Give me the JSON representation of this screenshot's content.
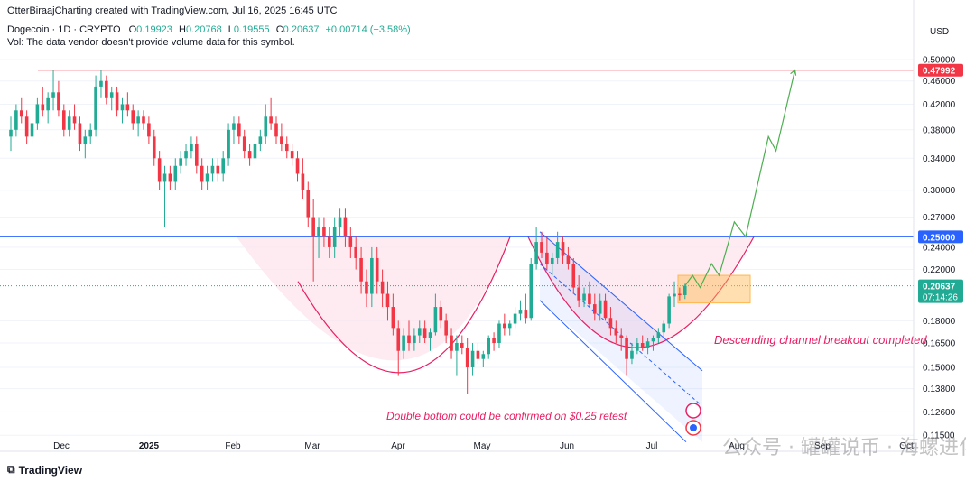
{
  "header": {
    "author_line": "OtterBiraajCharting created with TradingView.com, Jul 16, 2025 16:45 UTC",
    "symbol": "Dogecoin · 1D · CRYPTO",
    "o_label": "O",
    "o_value": "0.19923",
    "h_label": "H",
    "h_value": "0.20768",
    "l_label": "L",
    "l_value": "0.19555",
    "c_label": "C",
    "c_value": "0.20637",
    "change": "+0.00714 (+3.58%)",
    "vol_note": "Vol: The data vendor doesn't provide volume data for this symbol."
  },
  "currency": "USD",
  "branding": "TradingView",
  "watermark": "公众号 · 罐罐说币 · 海螺进化论",
  "colors": {
    "up": "#22ab94",
    "down": "#f23645",
    "resistance": "#f23645",
    "support": "#2962ff",
    "pattern_fill": "#fce4ec",
    "pattern_stroke": "#e91e63",
    "channel": "#2962ff",
    "projection": "#4caf50",
    "box": "#ffb74d"
  },
  "chart_data": {
    "type": "candlestick",
    "title": "Dogecoin · 1D · CRYPTO",
    "x_tick_labels": [
      "Dec",
      "2025",
      "Feb",
      "Mar",
      "Apr",
      "May",
      "Jun",
      "Jul",
      "Aug",
      "Sep",
      "Oct"
    ],
    "y_axis": {
      "scale": "log",
      "ylim": [
        0.108,
        0.52
      ],
      "tick_labels": [
        "0.50000",
        "0.46000",
        "0.42000",
        "0.38000",
        "0.34000",
        "0.30000",
        "0.27000",
        "0.24000",
        "0.22000",
        "0.18000",
        "0.16500",
        "0.15000",
        "0.13800",
        "0.12600",
        "0.11500"
      ]
    },
    "price_tags": [
      {
        "label": "0.47992",
        "value": 0.47992,
        "color": "#f23645"
      },
      {
        "label": "0.25000",
        "value": 0.25,
        "color": "#2962ff"
      },
      {
        "label": "0.20637",
        "sub": "07:14:26",
        "value": 0.20637,
        "color": "#22ab94"
      }
    ],
    "horizontal_levels": [
      {
        "value": 0.47992,
        "color": "#f23645"
      },
      {
        "value": 0.25,
        "color": "#2962ff"
      }
    ],
    "annotations": [
      {
        "text": "Descending channel breakout completed"
      },
      {
        "text": "Double bottom could be confirmed on $0.25 retest"
      }
    ],
    "current_price": 0.20637,
    "candles": [
      [
        0.37,
        0.4,
        0.35,
        0.38
      ],
      [
        0.38,
        0.42,
        0.37,
        0.41
      ],
      [
        0.41,
        0.43,
        0.39,
        0.4
      ],
      [
        0.4,
        0.41,
        0.36,
        0.37
      ],
      [
        0.37,
        0.4,
        0.36,
        0.39
      ],
      [
        0.39,
        0.43,
        0.38,
        0.42
      ],
      [
        0.42,
        0.45,
        0.4,
        0.41
      ],
      [
        0.41,
        0.44,
        0.39,
        0.43
      ],
      [
        0.43,
        0.48,
        0.41,
        0.44
      ],
      [
        0.44,
        0.46,
        0.4,
        0.41
      ],
      [
        0.41,
        0.42,
        0.37,
        0.38
      ],
      [
        0.38,
        0.41,
        0.37,
        0.4
      ],
      [
        0.4,
        0.42,
        0.38,
        0.39
      ],
      [
        0.39,
        0.4,
        0.35,
        0.36
      ],
      [
        0.36,
        0.38,
        0.34,
        0.37
      ],
      [
        0.37,
        0.39,
        0.36,
        0.38
      ],
      [
        0.38,
        0.47,
        0.37,
        0.45
      ],
      [
        0.45,
        0.48,
        0.43,
        0.46
      ],
      [
        0.46,
        0.47,
        0.42,
        0.43
      ],
      [
        0.43,
        0.45,
        0.41,
        0.44
      ],
      [
        0.44,
        0.45,
        0.4,
        0.41
      ],
      [
        0.41,
        0.43,
        0.39,
        0.42
      ],
      [
        0.42,
        0.44,
        0.4,
        0.41
      ],
      [
        0.41,
        0.42,
        0.38,
        0.39
      ],
      [
        0.39,
        0.41,
        0.37,
        0.4
      ],
      [
        0.4,
        0.41,
        0.38,
        0.39
      ],
      [
        0.39,
        0.4,
        0.36,
        0.37
      ],
      [
        0.37,
        0.38,
        0.33,
        0.34
      ],
      [
        0.34,
        0.35,
        0.3,
        0.31
      ],
      [
        0.31,
        0.33,
        0.26,
        0.32
      ],
      [
        0.32,
        0.33,
        0.3,
        0.31
      ],
      [
        0.31,
        0.34,
        0.3,
        0.33
      ],
      [
        0.33,
        0.35,
        0.32,
        0.34
      ],
      [
        0.34,
        0.36,
        0.33,
        0.35
      ],
      [
        0.35,
        0.37,
        0.34,
        0.36
      ],
      [
        0.36,
        0.37,
        0.32,
        0.33
      ],
      [
        0.33,
        0.34,
        0.3,
        0.31
      ],
      [
        0.31,
        0.33,
        0.3,
        0.32
      ],
      [
        0.32,
        0.34,
        0.31,
        0.33
      ],
      [
        0.33,
        0.34,
        0.31,
        0.32
      ],
      [
        0.32,
        0.35,
        0.31,
        0.34
      ],
      [
        0.34,
        0.39,
        0.33,
        0.38
      ],
      [
        0.38,
        0.4,
        0.36,
        0.39
      ],
      [
        0.39,
        0.4,
        0.36,
        0.37
      ],
      [
        0.37,
        0.38,
        0.34,
        0.35
      ],
      [
        0.35,
        0.36,
        0.33,
        0.34
      ],
      [
        0.34,
        0.37,
        0.33,
        0.36
      ],
      [
        0.36,
        0.38,
        0.35,
        0.37
      ],
      [
        0.37,
        0.42,
        0.36,
        0.4
      ],
      [
        0.4,
        0.43,
        0.38,
        0.39
      ],
      [
        0.39,
        0.4,
        0.36,
        0.37
      ],
      [
        0.37,
        0.39,
        0.35,
        0.36
      ],
      [
        0.36,
        0.37,
        0.34,
        0.35
      ],
      [
        0.35,
        0.36,
        0.33,
        0.34
      ],
      [
        0.34,
        0.35,
        0.31,
        0.32
      ],
      [
        0.32,
        0.34,
        0.29,
        0.3
      ],
      [
        0.3,
        0.31,
        0.26,
        0.27
      ],
      [
        0.27,
        0.29,
        0.21,
        0.25
      ],
      [
        0.25,
        0.27,
        0.23,
        0.26
      ],
      [
        0.26,
        0.27,
        0.24,
        0.25
      ],
      [
        0.25,
        0.26,
        0.23,
        0.24
      ],
      [
        0.24,
        0.27,
        0.23,
        0.26
      ],
      [
        0.26,
        0.28,
        0.25,
        0.27
      ],
      [
        0.27,
        0.28,
        0.24,
        0.25
      ],
      [
        0.25,
        0.26,
        0.23,
        0.24
      ],
      [
        0.24,
        0.25,
        0.22,
        0.23
      ],
      [
        0.23,
        0.24,
        0.2,
        0.21
      ],
      [
        0.21,
        0.22,
        0.19,
        0.2
      ],
      [
        0.2,
        0.24,
        0.19,
        0.23
      ],
      [
        0.23,
        0.24,
        0.2,
        0.21
      ],
      [
        0.21,
        0.22,
        0.19,
        0.2
      ],
      [
        0.2,
        0.21,
        0.18,
        0.19
      ],
      [
        0.19,
        0.2,
        0.17,
        0.175
      ],
      [
        0.175,
        0.18,
        0.145,
        0.16
      ],
      [
        0.16,
        0.175,
        0.155,
        0.17
      ],
      [
        0.17,
        0.18,
        0.16,
        0.165
      ],
      [
        0.165,
        0.175,
        0.16,
        0.17
      ],
      [
        0.17,
        0.18,
        0.165,
        0.175
      ],
      [
        0.175,
        0.18,
        0.165,
        0.168
      ],
      [
        0.168,
        0.175,
        0.16,
        0.172
      ],
      [
        0.172,
        0.2,
        0.17,
        0.19
      ],
      [
        0.19,
        0.195,
        0.175,
        0.18
      ],
      [
        0.18,
        0.185,
        0.165,
        0.17
      ],
      [
        0.17,
        0.175,
        0.155,
        0.16
      ],
      [
        0.16,
        0.17,
        0.145,
        0.165
      ],
      [
        0.165,
        0.17,
        0.158,
        0.162
      ],
      [
        0.162,
        0.168,
        0.135,
        0.15
      ],
      [
        0.15,
        0.165,
        0.145,
        0.16
      ],
      [
        0.16,
        0.165,
        0.152,
        0.155
      ],
      [
        0.155,
        0.16,
        0.15,
        0.158
      ],
      [
        0.158,
        0.17,
        0.155,
        0.168
      ],
      [
        0.168,
        0.172,
        0.16,
        0.165
      ],
      [
        0.165,
        0.18,
        0.162,
        0.178
      ],
      [
        0.178,
        0.185,
        0.17,
        0.175
      ],
      [
        0.175,
        0.18,
        0.17,
        0.178
      ],
      [
        0.178,
        0.19,
        0.175,
        0.185
      ],
      [
        0.185,
        0.195,
        0.18,
        0.188
      ],
      [
        0.188,
        0.2,
        0.178,
        0.182
      ],
      [
        0.182,
        0.23,
        0.18,
        0.225
      ],
      [
        0.225,
        0.26,
        0.22,
        0.245
      ],
      [
        0.245,
        0.255,
        0.23,
        0.235
      ],
      [
        0.235,
        0.25,
        0.22,
        0.225
      ],
      [
        0.225,
        0.235,
        0.215,
        0.23
      ],
      [
        0.23,
        0.255,
        0.225,
        0.245
      ],
      [
        0.245,
        0.25,
        0.225,
        0.232
      ],
      [
        0.232,
        0.24,
        0.22,
        0.225
      ],
      [
        0.225,
        0.23,
        0.2,
        0.205
      ],
      [
        0.205,
        0.215,
        0.19,
        0.195
      ],
      [
        0.195,
        0.205,
        0.19,
        0.2
      ],
      [
        0.2,
        0.21,
        0.19,
        0.192
      ],
      [
        0.192,
        0.2,
        0.18,
        0.185
      ],
      [
        0.185,
        0.2,
        0.18,
        0.195
      ],
      [
        0.195,
        0.2,
        0.18,
        0.182
      ],
      [
        0.182,
        0.19,
        0.17,
        0.175
      ],
      [
        0.175,
        0.18,
        0.165,
        0.17
      ],
      [
        0.17,
        0.175,
        0.16,
        0.168
      ],
      [
        0.168,
        0.17,
        0.145,
        0.155
      ],
      [
        0.155,
        0.165,
        0.152,
        0.16
      ],
      [
        0.16,
        0.168,
        0.158,
        0.165
      ],
      [
        0.165,
        0.17,
        0.16,
        0.162
      ],
      [
        0.162,
        0.168,
        0.158,
        0.166
      ],
      [
        0.166,
        0.17,
        0.16,
        0.168
      ],
      [
        0.168,
        0.175,
        0.165,
        0.172
      ],
      [
        0.172,
        0.18,
        0.168,
        0.178
      ],
      [
        0.178,
        0.2,
        0.175,
        0.198
      ],
      [
        0.198,
        0.21,
        0.19,
        0.2
      ],
      [
        0.2,
        0.205,
        0.195,
        0.199
      ],
      [
        0.199,
        0.208,
        0.196,
        0.2064
      ]
    ],
    "projection_path": [
      [
        0,
        0.2064
      ],
      [
        2,
        0.215
      ],
      [
        4,
        0.205
      ],
      [
        7,
        0.225
      ],
      [
        9,
        0.215
      ],
      [
        13,
        0.265
      ],
      [
        16,
        0.25
      ],
      [
        22,
        0.37
      ],
      [
        24,
        0.35
      ],
      [
        29,
        0.48
      ]
    ]
  }
}
